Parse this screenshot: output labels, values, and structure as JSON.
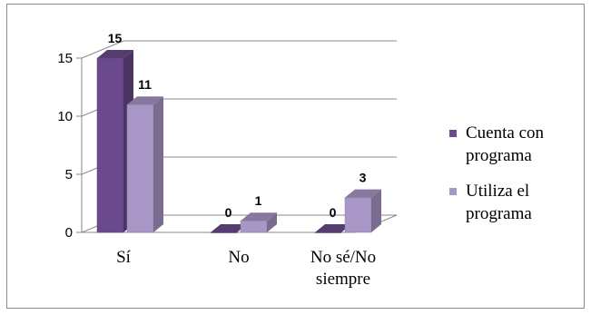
{
  "chart_data": {
    "type": "bar",
    "title": "",
    "xlabel": "",
    "ylabel": "",
    "categories": [
      "Sí",
      "No",
      "No sé/No siempre"
    ],
    "category_lines": [
      [
        "Sí"
      ],
      [
        "No"
      ],
      [
        "No sé/No",
        "siempre"
      ]
    ],
    "series": [
      {
        "name": "Cuenta con programa",
        "name_lines": [
          "Cuenta con",
          "programa"
        ],
        "values": [
          15,
          0,
          0
        ],
        "color": "#6a4a8c"
      },
      {
        "name": "Utiliza el programa",
        "name_lines": [
          "Utiliza el",
          "programa"
        ],
        "values": [
          11,
          1,
          3
        ],
        "color": "#a896c6"
      }
    ],
    "ylim": [
      0,
      15
    ],
    "yticks": [
      0,
      5,
      10,
      15
    ],
    "grid": true,
    "legend_position": "right",
    "data_labels": true
  }
}
